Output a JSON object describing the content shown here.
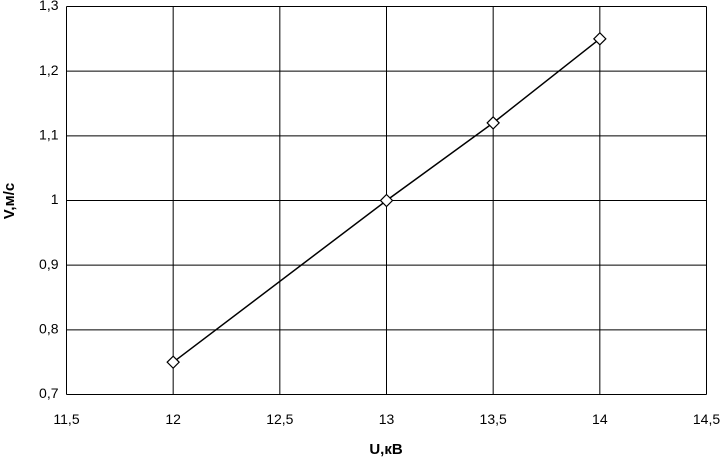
{
  "chart_data": {
    "type": "line",
    "xlabel": "U,кВ",
    "ylabel": "V,м/с",
    "x": [
      12,
      13,
      13.5,
      14
    ],
    "values": [
      0.75,
      1.0,
      1.12,
      1.25
    ],
    "color": "#000000",
    "marker": "diamond",
    "xlim": [
      11.5,
      14.5
    ],
    "xticks": [
      {
        "value": 11.5,
        "label": "11,5"
      },
      12,
      {
        "value": 12.5,
        "label": "12,5"
      },
      13,
      {
        "value": 13.5,
        "label": "13,5"
      },
      14,
      {
        "value": 14.5,
        "label": "14,5"
      }
    ],
    "ylim": [
      0.7,
      1.3
    ],
    "yticks": [
      {
        "value": 0.7,
        "label": "0,7"
      },
      {
        "value": 0.8,
        "label": "0,8"
      },
      {
        "value": 0.9,
        "label": "0,9"
      },
      1,
      {
        "value": 1.1,
        "label": "1,1"
      },
      {
        "value": 1.2,
        "label": "1,2"
      },
      {
        "value": 1.3,
        "label": "1,3"
      }
    ],
    "grid": true
  }
}
